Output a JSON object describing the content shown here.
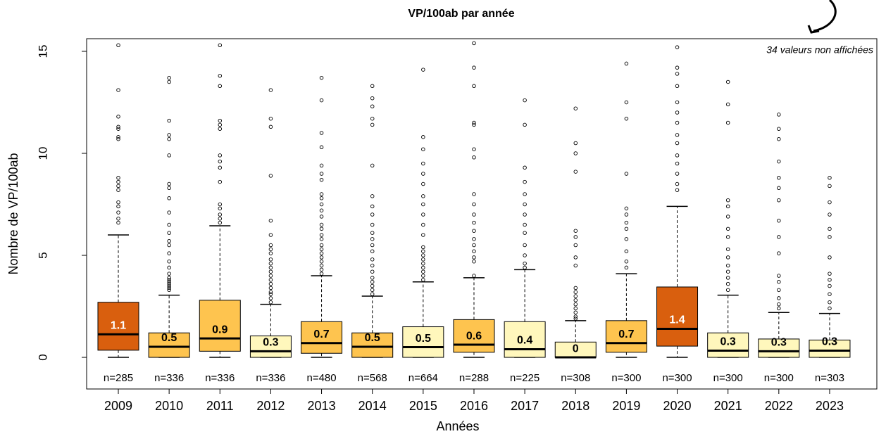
{
  "chart_data": {
    "type": "boxplot",
    "title": "VP/100ab par année",
    "xlabel": "Années",
    "ylabel": "Nombre de VP/100ab",
    "annotation": "34 valeurs non affichées",
    "categories": [
      "2009",
      "2010",
      "2011",
      "2012",
      "2013",
      "2014",
      "2015",
      "2016",
      "2017",
      "2018",
      "2019",
      "2020",
      "2021",
      "2022",
      "2023"
    ],
    "n_labels": [
      "n=285",
      "n=336",
      "n=336",
      "n=336",
      "n=480",
      "n=568",
      "n=664",
      "n=288",
      "n=225",
      "n=308",
      "n=300",
      "n=300",
      "n=300",
      "n=300",
      "n=303"
    ],
    "whislo": [
      0,
      0,
      0,
      0,
      0,
      0,
      0,
      0,
      0,
      0,
      0,
      0,
      0,
      0,
      0
    ],
    "q1": [
      0.35,
      0,
      0.3,
      0,
      0.2,
      0,
      0,
      0.25,
      0,
      0,
      0.25,
      0.55,
      0,
      0,
      0
    ],
    "medians": [
      1.13,
      0.52,
      0.93,
      0.3,
      0.7,
      0.52,
      0.5,
      0.62,
      0.4,
      0,
      0.7,
      1.4,
      0.33,
      0.3,
      0.33
    ],
    "median_labels": [
      "1.1",
      "0.5",
      "0.9",
      "0.3",
      "0.7",
      "0.5",
      "0.5",
      "0.6",
      "0.4",
      "0",
      "0.7",
      "1.4",
      "0.3",
      "0.3",
      "0.3"
    ],
    "q3": [
      2.7,
      1.2,
      2.8,
      1.05,
      1.75,
      1.2,
      1.5,
      1.85,
      1.75,
      0.75,
      1.8,
      3.45,
      1.2,
      0.9,
      0.85
    ],
    "whishi": [
      6.0,
      3.05,
      6.45,
      2.6,
      4.0,
      3.0,
      3.7,
      3.9,
      4.3,
      1.8,
      4.1,
      7.4,
      3.05,
      2.2,
      2.15
    ],
    "colors": [
      "#d95f0e",
      "#fec44f",
      "#fec44f",
      "#fff7bc",
      "#fec44f",
      "#fec44f",
      "#fff7bc",
      "#fec44f",
      "#fff7bc",
      "#fff7bc",
      "#fec44f",
      "#d95f0e",
      "#fff7bc",
      "#fff7bc",
      "#fff7bc"
    ],
    "outliers": [
      [
        6.6,
        6.8,
        7.1,
        7.4,
        7.6,
        8.2,
        8.4,
        8.6,
        8.8,
        10.7,
        10.8,
        11.2,
        11.3,
        11.8,
        13.1,
        15.3
      ],
      [
        3.3,
        3.4,
        3.5,
        3.6,
        3.7,
        3.8,
        3.9,
        4.1,
        4.4,
        4.7,
        5.1,
        5.5,
        5.7,
        6.1,
        6.5,
        7.1,
        7.8,
        8.3,
        8.5,
        9.9,
        10.7,
        10.9,
        11.6,
        13.5,
        13.7
      ],
      [
        6.6,
        6.8,
        7.0,
        7.3,
        7.5,
        8.6,
        9.3,
        9.6,
        9.9,
        11.2,
        11.4,
        11.6,
        13.3,
        13.8,
        15.3
      ],
      [
        2.7,
        2.9,
        3.1,
        3.2,
        3.4,
        3.6,
        3.8,
        4.0,
        4.2,
        4.4,
        4.6,
        4.8,
        5.1,
        5.3,
        5.5,
        6.0,
        6.7,
        8.9,
        11.3,
        11.7,
        13.1
      ],
      [
        4.1,
        4.3,
        4.5,
        4.7,
        4.9,
        5.1,
        5.3,
        5.5,
        5.8,
        6.0,
        6.3,
        6.5,
        6.9,
        7.2,
        7.5,
        7.8,
        8.0,
        8.7,
        9.0,
        9.4,
        10.3,
        11.0,
        12.6,
        13.7
      ],
      [
        3.1,
        3.3,
        3.5,
        3.7,
        3.9,
        4.2,
        4.5,
        4.8,
        5.2,
        5.5,
        5.8,
        6.1,
        6.5,
        7.0,
        7.4,
        7.9,
        9.4,
        11.4,
        11.7,
        12.3,
        12.7,
        13.3
      ],
      [
        3.8,
        4.0,
        4.2,
        4.4,
        4.6,
        4.8,
        5.0,
        5.2,
        5.4,
        6.0,
        6.5,
        7.0,
        7.5,
        7.9,
        8.5,
        9.0,
        9.5,
        10.2,
        10.8,
        14.1
      ],
      [
        4.0,
        4.7,
        4.9,
        5.2,
        5.5,
        5.8,
        6.2,
        6.6,
        7.0,
        7.5,
        8.0,
        9.8,
        10.2,
        11.4,
        11.5,
        13.3,
        14.2,
        15.4
      ],
      [
        4.4,
        4.6,
        5.0,
        5.5,
        6.1,
        6.5,
        7.0,
        7.5,
        8.0,
        8.6,
        9.3,
        11.4,
        12.6
      ],
      [
        1.9,
        2.0,
        2.2,
        2.4,
        2.6,
        2.8,
        3.0,
        3.2,
        3.4,
        4.5,
        4.9,
        5.5,
        5.9,
        6.2,
        9.1,
        10.0,
        10.5,
        12.2
      ],
      [
        4.4,
        4.7,
        5.2,
        5.8,
        6.3,
        6.6,
        7.0,
        7.3,
        9.0,
        11.7,
        12.5,
        14.4
      ],
      [
        8.2,
        8.5,
        9.0,
        9.5,
        9.9,
        10.5,
        10.9,
        11.5,
        12.0,
        12.5,
        13.3,
        13.9,
        14.2,
        15.2
      ],
      [
        3.3,
        3.6,
        3.9,
        4.2,
        4.5,
        4.9,
        5.3,
        5.9,
        6.3,
        6.9,
        7.4,
        7.7,
        11.5,
        12.4,
        13.5
      ],
      [
        2.4,
        2.6,
        2.9,
        3.3,
        3.7,
        4.0,
        5.1,
        5.9,
        6.7,
        7.7,
        8.3,
        8.8,
        9.6,
        10.7,
        11.2,
        11.9
      ],
      [
        2.4,
        2.7,
        3.1,
        3.5,
        3.8,
        4.1,
        4.9,
        5.9,
        6.3,
        7.0,
        7.6,
        8.4,
        8.8
      ]
    ],
    "ylim": [
      -1.55,
      15.62
    ],
    "yticks": [
      0,
      5,
      10,
      15
    ]
  }
}
